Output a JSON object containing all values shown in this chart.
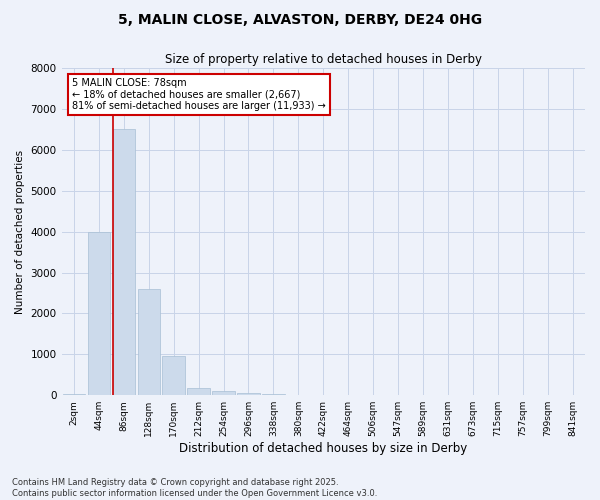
{
  "title_line1": "5, MALIN CLOSE, ALVASTON, DERBY, DE24 0HG",
  "title_line2": "Size of property relative to detached houses in Derby",
  "xlabel": "Distribution of detached houses by size in Derby",
  "ylabel": "Number of detached properties",
  "categories": [
    "2sqm",
    "44sqm",
    "86sqm",
    "128sqm",
    "170sqm",
    "212sqm",
    "254sqm",
    "296sqm",
    "338sqm",
    "380sqm",
    "422sqm",
    "464sqm",
    "506sqm",
    "547sqm",
    "589sqm",
    "631sqm",
    "673sqm",
    "715sqm",
    "757sqm",
    "799sqm",
    "841sqm"
  ],
  "values": [
    30,
    4000,
    6500,
    2600,
    950,
    175,
    100,
    50,
    20,
    0,
    0,
    0,
    0,
    0,
    0,
    0,
    0,
    0,
    0,
    0,
    0
  ],
  "bar_color": "#ccdaeb",
  "bar_edge_color": "#a8bfd4",
  "vline_color": "#cc0000",
  "vline_x_index": 1.575,
  "annotation_line1": "5 MALIN CLOSE: 78sqm",
  "annotation_line2": "← 18% of detached houses are smaller (2,667)",
  "annotation_line3": "81% of semi-detached houses are larger (11,933) →",
  "annotation_box_facecolor": "#ffffff",
  "annotation_box_edgecolor": "#cc0000",
  "ylim": [
    0,
    8000
  ],
  "yticks": [
    0,
    1000,
    2000,
    3000,
    4000,
    5000,
    6000,
    7000,
    8000
  ],
  "grid_color": "#c8d4e8",
  "background_color": "#eef2fa",
  "footnote1": "Contains HM Land Registry data © Crown copyright and database right 2025.",
  "footnote2": "Contains public sector information licensed under the Open Government Licence v3.0."
}
